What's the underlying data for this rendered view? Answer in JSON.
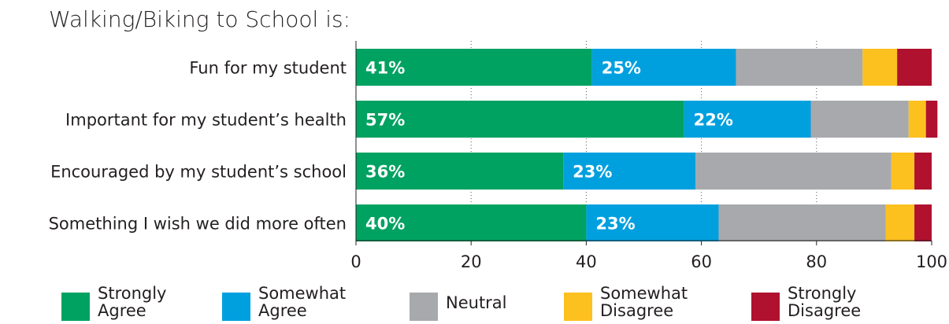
{
  "chart_data": {
    "type": "bar",
    "orientation": "horizontal",
    "stacked": true,
    "title": "Walking/Biking to School is:",
    "categories": [
      "Fun for my student",
      "Important for my student’s health",
      "Encouraged by my student’s school",
      "Something I wish we did more often"
    ],
    "series": [
      {
        "name": "Strongly\nAgree",
        "color": "#00a261",
        "values": [
          41,
          57,
          36,
          40
        ],
        "labels": [
          "41%",
          "57%",
          "36%",
          "40%"
        ]
      },
      {
        "name": "Somewhat\nAgree",
        "color": "#00a0df",
        "values": [
          25,
          22,
          23,
          23
        ],
        "labels": [
          "25%",
          "22%",
          "23%",
          "23%"
        ]
      },
      {
        "name": "Neutral",
        "color": "#a7a9ac",
        "values": [
          22,
          17,
          34,
          29
        ]
      },
      {
        "name": "Somewhat\nDisagree",
        "color": "#fcc01f",
        "values": [
          6,
          3,
          4,
          5
        ]
      },
      {
        "name": "Strongly\nDisagree",
        "color": "#b0112f",
        "values": [
          6,
          2,
          3,
          3
        ]
      }
    ],
    "xlim": [
      0,
      100
    ],
    "xticks": [
      0,
      20,
      40,
      60,
      80,
      100
    ],
    "grid": true,
    "legend_position": "bottom"
  }
}
